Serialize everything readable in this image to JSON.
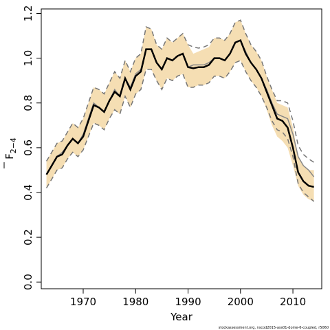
{
  "chart_data": {
    "type": "line",
    "xlabel": "Year",
    "ylabel_main": "F",
    "ylabel_sub": "2−4",
    "xlim": [
      1962,
      2015.5
    ],
    "ylim": [
      -0.03,
      1.22
    ],
    "x_ticks": [
      1970,
      1980,
      1990,
      2000,
      2010
    ],
    "y_ticks": [
      0.0,
      0.2,
      0.4,
      0.6,
      0.8,
      1.0,
      1.2
    ],
    "y_tick_labels": [
      "0.0",
      "0.2",
      "0.4",
      "0.6",
      "0.8",
      "1.0",
      "1.2"
    ],
    "credit": "stockassessment.org, nscod2015-ass01-dome-6-coupled, r5060",
    "colors": {
      "band": "#f5deb3",
      "estimate": "#000000",
      "alt_estimate": "#888888",
      "ci_dashed": "#777777"
    },
    "years": [
      1963,
      1964,
      1965,
      1966,
      1967,
      1968,
      1969,
      1970,
      1971,
      1972,
      1973,
      1974,
      1975,
      1976,
      1977,
      1978,
      1979,
      1980,
      1981,
      1982,
      1983,
      1984,
      1985,
      1986,
      1987,
      1988,
      1989,
      1990,
      1991,
      1992,
      1993,
      1994,
      1995,
      1996,
      1997,
      1998,
      1999,
      2000,
      2001,
      2002,
      2003,
      2004,
      2005,
      2006,
      2007,
      2008,
      2009,
      2010,
      2011,
      2012,
      2013,
      2014
    ],
    "series": [
      {
        "name": "estimate",
        "values": [
          0.48,
          0.52,
          0.56,
          0.57,
          0.61,
          0.64,
          0.62,
          0.65,
          0.72,
          0.79,
          0.78,
          0.76,
          0.81,
          0.85,
          0.83,
          0.91,
          0.86,
          0.92,
          0.94,
          1.04,
          1.04,
          0.98,
          0.95,
          1.0,
          0.99,
          1.01,
          1.02,
          0.96,
          0.955,
          0.96,
          0.96,
          0.97,
          1.0,
          1.0,
          0.99,
          1.02,
          1.07,
          1.08,
          1.02,
          0.98,
          0.95,
          0.91,
          0.85,
          0.79,
          0.73,
          0.72,
          0.69,
          0.6,
          0.49,
          0.45,
          0.43,
          0.425
        ]
      },
      {
        "name": "alternative estimate",
        "values": [
          0.48,
          0.52,
          0.56,
          0.58,
          0.61,
          0.64,
          0.62,
          0.66,
          0.73,
          0.8,
          0.78,
          0.76,
          0.81,
          0.86,
          0.83,
          0.91,
          0.87,
          0.93,
          0.95,
          1.04,
          1.04,
          0.98,
          0.95,
          1.0,
          0.99,
          1.01,
          1.02,
          0.96,
          0.97,
          0.97,
          0.97,
          0.98,
          1.0,
          1.0,
          0.99,
          1.02,
          1.07,
          1.08,
          1.03,
          0.98,
          0.95,
          0.91,
          0.86,
          0.8,
          0.75,
          0.74,
          0.73,
          0.66,
          0.56,
          0.52,
          0.5,
          0.47
        ]
      },
      {
        "name": "upper",
        "values": [
          0.54,
          0.58,
          0.62,
          0.63,
          0.67,
          0.71,
          0.69,
          0.73,
          0.8,
          0.87,
          0.86,
          0.84,
          0.89,
          0.94,
          0.91,
          0.99,
          0.94,
          1.0,
          1.02,
          1.14,
          1.13,
          1.06,
          1.04,
          1.09,
          1.07,
          1.09,
          1.11,
          1.06,
          1.05,
          1.045,
          1.05,
          1.06,
          1.09,
          1.09,
          1.08,
          1.11,
          1.16,
          1.17,
          1.11,
          1.06,
          1.03,
          0.99,
          0.92,
          0.86,
          0.81,
          0.81,
          0.8,
          0.72,
          0.61,
          0.57,
          0.55,
          0.535
        ]
      },
      {
        "name": "lower",
        "values": [
          0.42,
          0.46,
          0.5,
          0.51,
          0.55,
          0.58,
          0.56,
          0.59,
          0.65,
          0.71,
          0.7,
          0.68,
          0.73,
          0.77,
          0.75,
          0.83,
          0.78,
          0.84,
          0.86,
          0.95,
          0.95,
          0.9,
          0.86,
          0.91,
          0.9,
          0.92,
          0.93,
          0.87,
          0.87,
          0.88,
          0.88,
          0.89,
          0.92,
          0.92,
          0.91,
          0.94,
          0.98,
          0.99,
          0.94,
          0.9,
          0.87,
          0.83,
          0.78,
          0.72,
          0.68,
          0.67,
          0.64,
          0.56,
          0.44,
          0.4,
          0.38,
          0.36
        ]
      },
      {
        "name": "band upper",
        "values": [
          0.54,
          0.58,
          0.62,
          0.63,
          0.67,
          0.71,
          0.69,
          0.73,
          0.8,
          0.87,
          0.86,
          0.84,
          0.89,
          0.94,
          0.91,
          0.99,
          0.94,
          1.0,
          1.02,
          1.14,
          1.13,
          1.06,
          1.04,
          1.09,
          1.07,
          1.09,
          1.11,
          1.06,
          1.02,
          1.03,
          1.04,
          1.05,
          1.09,
          1.09,
          1.08,
          1.11,
          1.16,
          1.17,
          1.11,
          1.06,
          1.03,
          0.99,
          0.92,
          0.86,
          0.8,
          0.79,
          0.78,
          0.69,
          0.56,
          0.52,
          0.5,
          0.5
        ]
      },
      {
        "name": "band lower",
        "values": [
          0.42,
          0.46,
          0.5,
          0.51,
          0.55,
          0.58,
          0.56,
          0.59,
          0.65,
          0.71,
          0.7,
          0.68,
          0.73,
          0.77,
          0.75,
          0.83,
          0.78,
          0.84,
          0.86,
          0.95,
          0.95,
          0.9,
          0.86,
          0.91,
          0.9,
          0.92,
          0.93,
          0.87,
          0.87,
          0.88,
          0.88,
          0.89,
          0.92,
          0.92,
          0.91,
          0.94,
          0.98,
          0.99,
          0.94,
          0.9,
          0.87,
          0.83,
          0.77,
          0.7,
          0.65,
          0.63,
          0.6,
          0.52,
          0.43,
          0.39,
          0.37,
          0.36
        ]
      }
    ]
  }
}
